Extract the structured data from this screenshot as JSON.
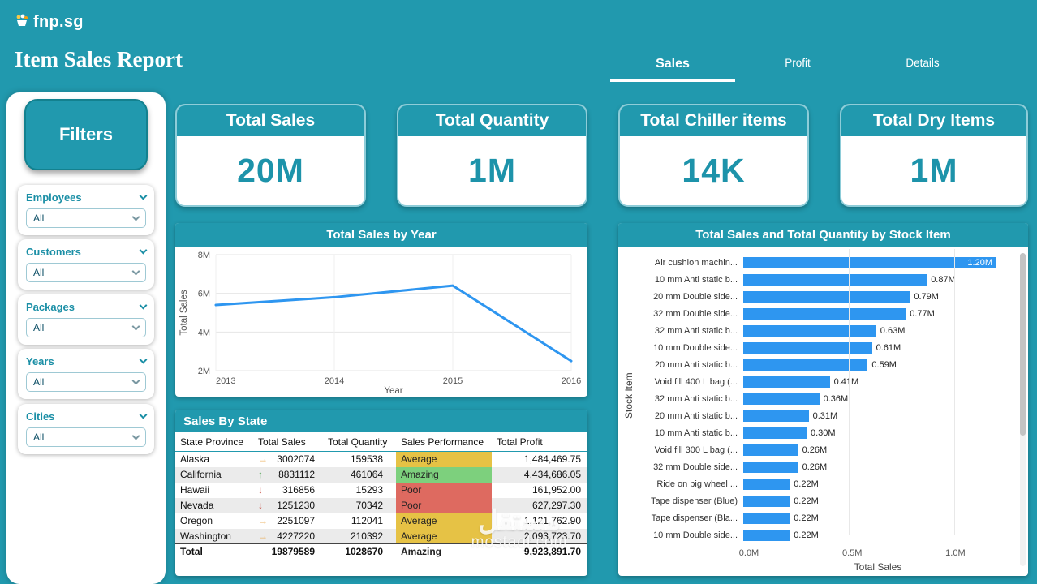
{
  "accent_color": "#2199AE",
  "header": {
    "logo_text": "fnp.sg",
    "title": "Item Sales Report",
    "tabs": [
      {
        "label": "Sales",
        "active": true
      },
      {
        "label": "Profit",
        "active": false
      },
      {
        "label": "Details",
        "active": false
      }
    ]
  },
  "sidebar": {
    "title": "Filters",
    "filters": [
      {
        "label": "Employees",
        "value": "All"
      },
      {
        "label": "Customers",
        "value": "All"
      },
      {
        "label": "Packages",
        "value": "All"
      },
      {
        "label": "Years",
        "value": "All"
      },
      {
        "label": "Cities",
        "value": "All"
      }
    ]
  },
  "kpis": [
    {
      "title": "Total Sales",
      "value": "20M"
    },
    {
      "title": "Total Quantity",
      "value": "1M"
    },
    {
      "title": "Total Chiller items",
      "value": "14K"
    },
    {
      "title": "Total Dry Items",
      "value": "1M"
    }
  ],
  "chart_data": [
    {
      "type": "line",
      "title": "Total Sales by Year",
      "x": [
        "2013",
        "2014",
        "2015",
        "2016"
      ],
      "values": [
        5400000,
        5800000,
        6400000,
        2500000
      ],
      "xlabel": "Year",
      "ylabel": "Total Sales",
      "ylim": [
        2000000,
        8000000
      ],
      "yticks": [
        {
          "value": 2000000,
          "label": "2M"
        },
        {
          "value": 4000000,
          "label": "4M"
        },
        {
          "value": 6000000,
          "label": "6M"
        },
        {
          "value": 8000000,
          "label": "8M"
        }
      ],
      "grid": true
    },
    {
      "type": "bar",
      "orientation": "horizontal",
      "title": "Total Sales and Total Quantity by Stock Item",
      "xlabel": "Total Sales",
      "ylabel": "Stock Item",
      "xlim_millions": [
        0,
        1.25
      ],
      "xticks": [
        {
          "value": 0,
          "label": "0.0M"
        },
        {
          "value": 0.5,
          "label": "0.5M"
        },
        {
          "value": 1.0,
          "label": "1.0M"
        }
      ],
      "items": [
        {
          "category": "Air cushion machin...",
          "value_millions": 1.2,
          "label": "1.20M",
          "label_inside": true
        },
        {
          "category": "10 mm Anti static b...",
          "value_millions": 0.87,
          "label": "0.87M"
        },
        {
          "category": "20 mm Double side...",
          "value_millions": 0.79,
          "label": "0.79M"
        },
        {
          "category": "32 mm Double side...",
          "value_millions": 0.77,
          "label": "0.77M"
        },
        {
          "category": "32 mm Anti static b...",
          "value_millions": 0.63,
          "label": "0.63M"
        },
        {
          "category": "10 mm Double side...",
          "value_millions": 0.61,
          "label": "0.61M"
        },
        {
          "category": "20 mm Anti static b...",
          "value_millions": 0.59,
          "label": "0.59M"
        },
        {
          "category": "Void fill 400 L bag (...",
          "value_millions": 0.41,
          "label": "0.41M"
        },
        {
          "category": "32 mm Anti static b...",
          "value_millions": 0.36,
          "label": "0.36M"
        },
        {
          "category": "20 mm Anti static b...",
          "value_millions": 0.31,
          "label": "0.31M"
        },
        {
          "category": "10 mm Anti static b...",
          "value_millions": 0.3,
          "label": "0.30M"
        },
        {
          "category": "Void fill 300 L bag (...",
          "value_millions": 0.26,
          "label": "0.26M"
        },
        {
          "category": "32 mm Double side...",
          "value_millions": 0.26,
          "label": "0.26M"
        },
        {
          "category": "Ride on big wheel ...",
          "value_millions": 0.22,
          "label": "0.22M"
        },
        {
          "category": "Tape dispenser (Blue)",
          "value_millions": 0.22,
          "label": "0.22M"
        },
        {
          "category": "Tape dispenser (Bla...",
          "value_millions": 0.22,
          "label": "0.22M"
        },
        {
          "category": "10 mm Double side...",
          "value_millions": 0.22,
          "label": "0.22M"
        }
      ]
    },
    {
      "type": "table",
      "title": "Sales By State",
      "columns": [
        "State Province",
        "Total Sales",
        "Total Quantity",
        "Sales Performance",
        "Total Profit"
      ],
      "rows": [
        {
          "state": "Alaska",
          "trend": "right",
          "total_sales": "3002074",
          "total_quantity": "159538",
          "performance": "Average",
          "total_profit": "1,484,469.75"
        },
        {
          "state": "California",
          "trend": "up",
          "total_sales": "8831112",
          "total_quantity": "461064",
          "performance": "Amazing",
          "total_profit": "4,434,686.05"
        },
        {
          "state": "Hawaii",
          "trend": "down",
          "total_sales": "316856",
          "total_quantity": "15293",
          "performance": "Poor",
          "total_profit": "161,952.00"
        },
        {
          "state": "Nevada",
          "trend": "down",
          "total_sales": "1251230",
          "total_quantity": "70342",
          "performance": "Poor",
          "total_profit": "627,297.30"
        },
        {
          "state": "Oregon",
          "trend": "right",
          "total_sales": "2251097",
          "total_quantity": "112041",
          "performance": "Average",
          "total_profit": "1,121,762.90"
        },
        {
          "state": "Washington",
          "trend": "right",
          "total_sales": "4227220",
          "total_quantity": "210392",
          "performance": "Average",
          "total_profit": "2,093,723.70"
        }
      ],
      "total_row": {
        "state": "Total",
        "total_sales": "19879589",
        "total_quantity": "1028670",
        "performance": "Amazing",
        "total_profit": "9,923,891.70"
      }
    }
  ],
  "watermark": {
    "line1": "مستقل",
    "line2": "mostaql.com"
  },
  "colors": {
    "series_blue": "#2E96F0",
    "status": {
      "Average": "#E6C245",
      "Amazing": "#7DD07D",
      "Poor": "#DE6A60"
    },
    "trend": {
      "up": {
        "glyph": "↑",
        "color": "#3E9B40"
      },
      "down": {
        "glyph": "↓",
        "color": "#C0392B"
      },
      "right": {
        "glyph": "→",
        "color": "#E8A13C"
      }
    }
  }
}
